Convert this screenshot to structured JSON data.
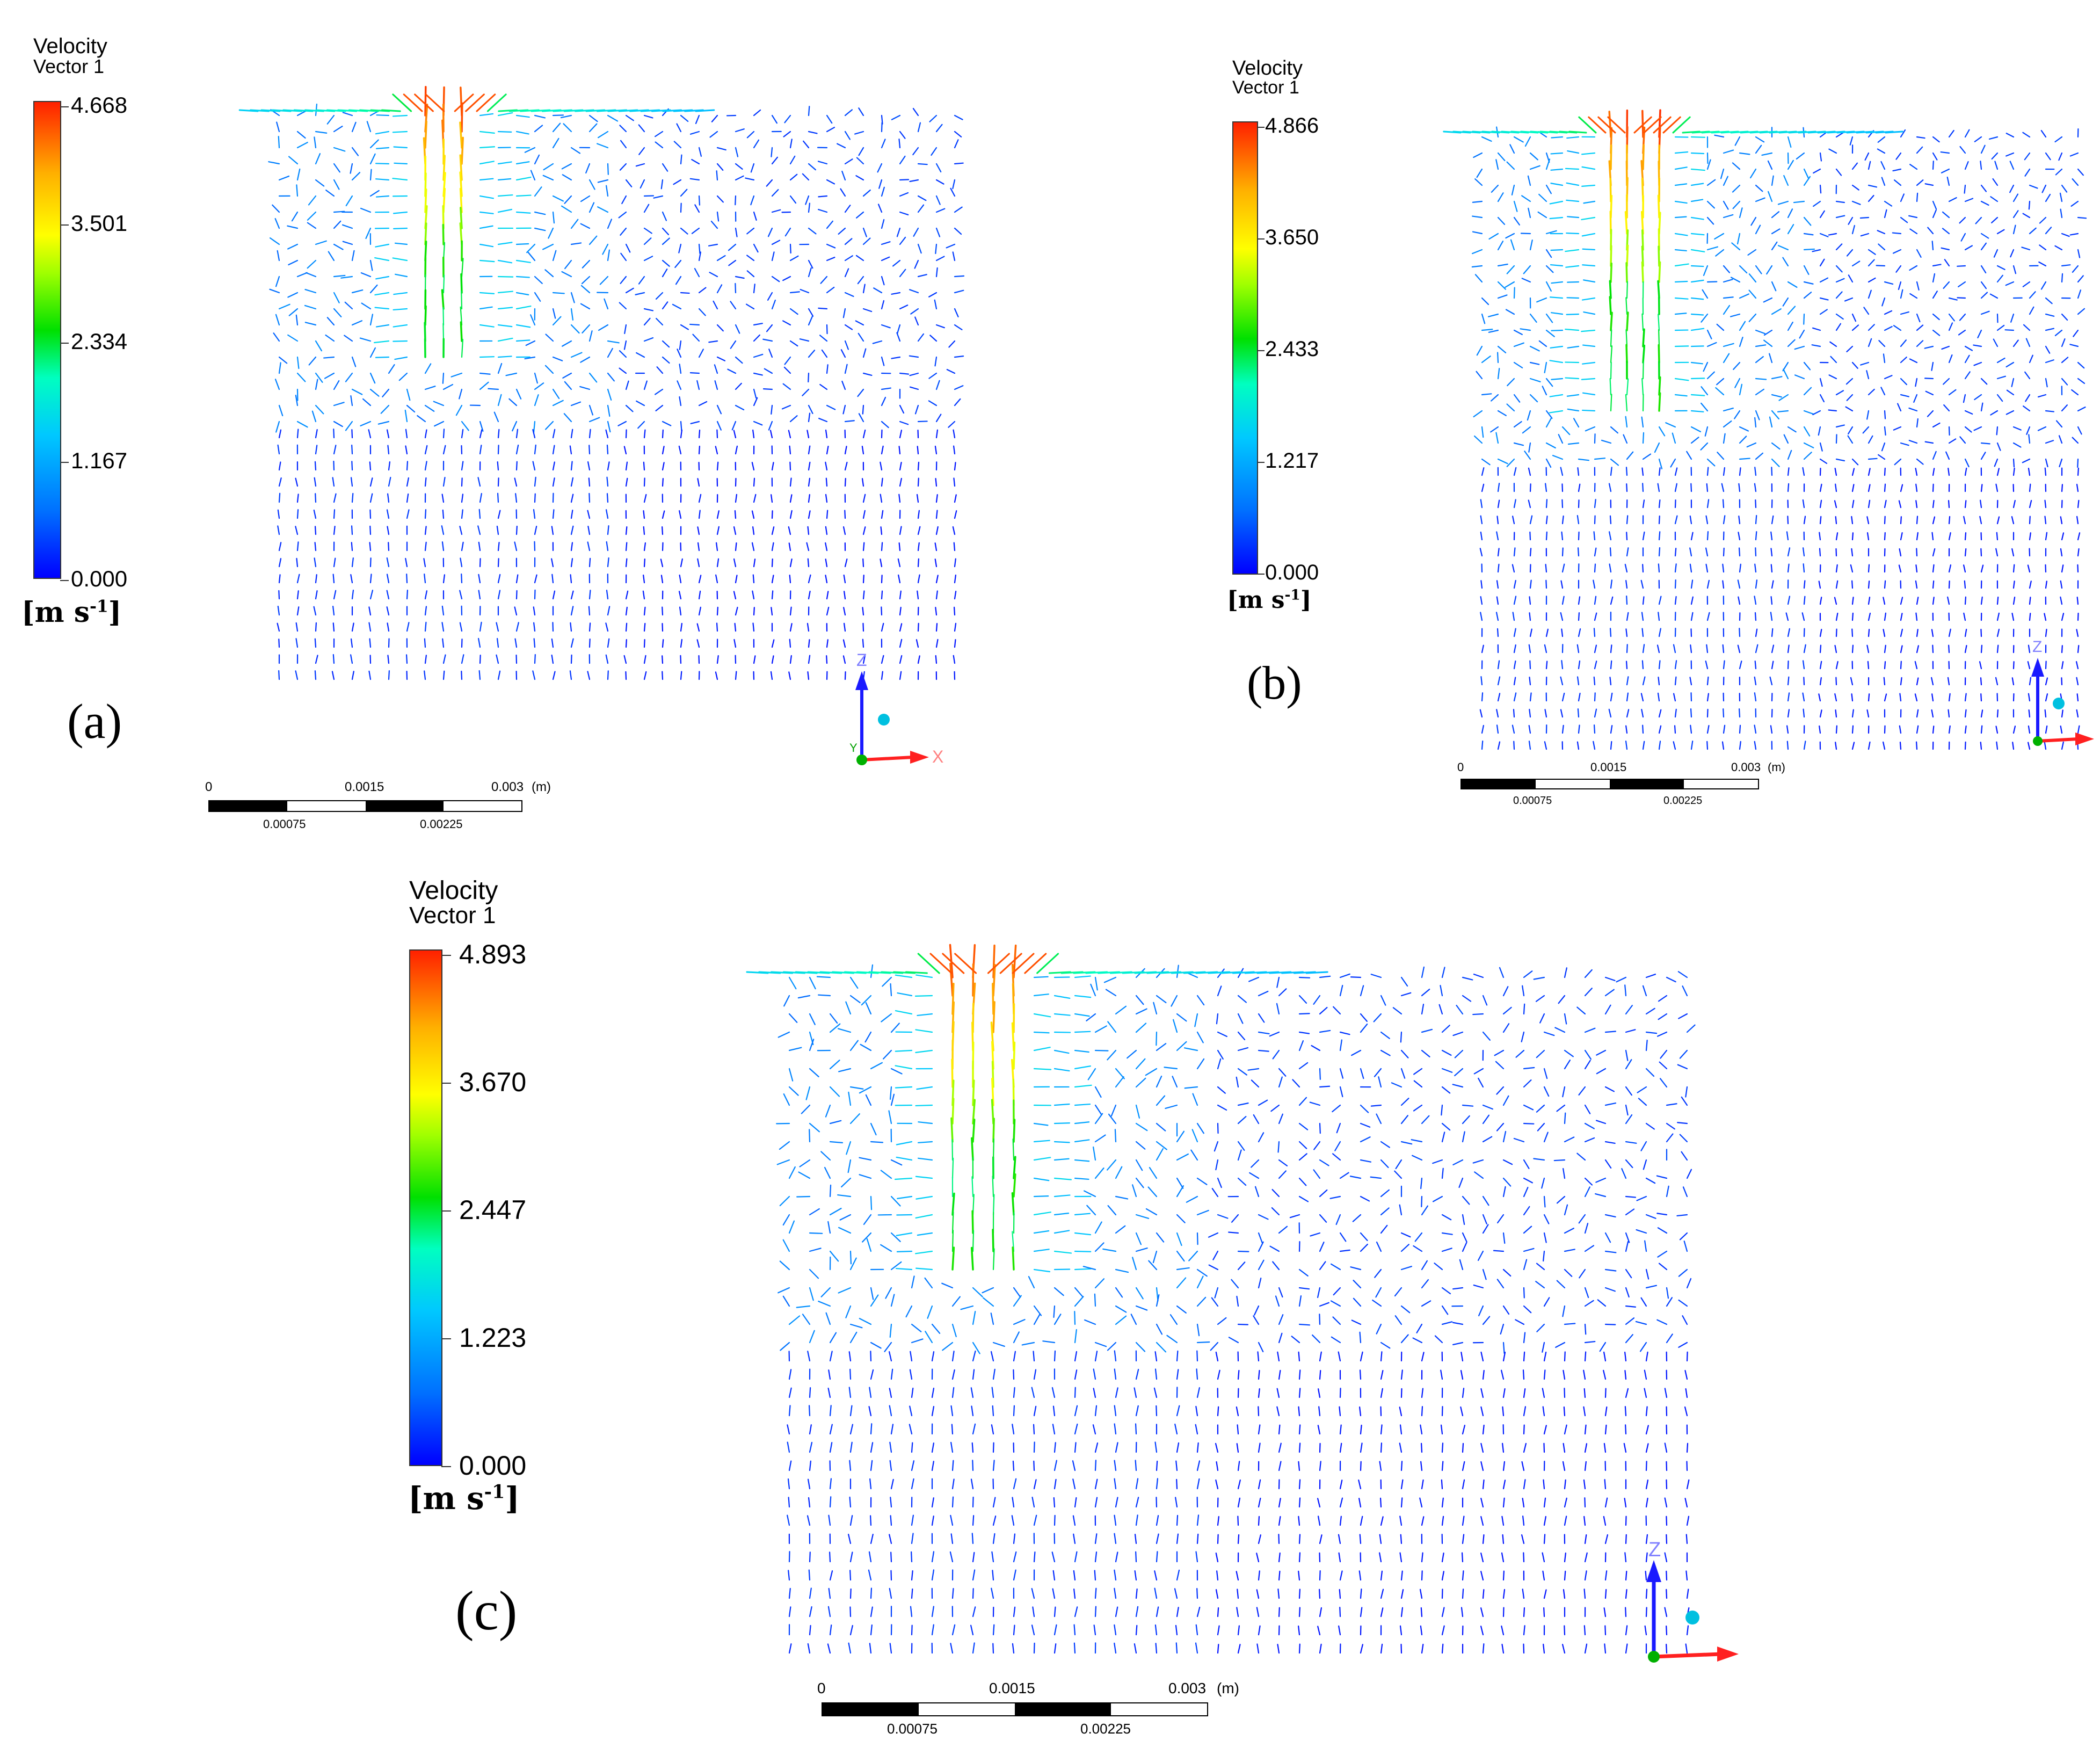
{
  "panels": [
    {
      "id": "a",
      "label": "(a)",
      "legend": {
        "title_line1": "Velocity",
        "title_line2": "Vector 1",
        "ticks": [
          "4.668",
          "3.501",
          "2.334",
          "1.167",
          "0.000"
        ],
        "unit": "[m s",
        "unit_exp": "-1",
        "unit_close": "]"
      },
      "scalebar": {
        "top_labels": [
          "0",
          "0.0015",
          "0.003",
          "(m)"
        ],
        "bottom_labels": [
          "0.00075",
          "0.00225"
        ]
      },
      "axes": {
        "z": "Z",
        "x": "X",
        "y": "Y"
      }
    },
    {
      "id": "b",
      "label": "(b)",
      "legend": {
        "title_line1": "Velocity",
        "title_line2": "Vector 1",
        "ticks": [
          "4.866",
          "3.650",
          "2.433",
          "1.217",
          "0.000"
        ],
        "unit": "[m s",
        "unit_exp": "-1",
        "unit_close": "]"
      },
      "scalebar": {
        "top_labels": [
          "0",
          "0.0015",
          "0.003",
          "(m)"
        ],
        "bottom_labels": [
          "0.00075",
          "0.00225"
        ]
      },
      "axes": {
        "z": "Z",
        "x": "",
        "y": ""
      }
    },
    {
      "id": "c",
      "label": "(c)",
      "legend": {
        "title_line1": "Velocity",
        "title_line2": "Vector 1",
        "ticks": [
          "4.893",
          "3.670",
          "2.447",
          "1.223",
          "0.000"
        ],
        "unit": "[m s",
        "unit_exp": "-1",
        "unit_close": "]"
      },
      "scalebar": {
        "top_labels": [
          "0",
          "0.0015",
          "0.003",
          "(m)"
        ],
        "bottom_labels": [
          "0.00075",
          "0.00225"
        ]
      },
      "axes": {
        "z": "Z",
        "x": "",
        "y": ""
      }
    }
  ],
  "colors": {
    "axis_z": "#1a1aff",
    "axis_x": "#ff2020",
    "axis_y": "#00b000",
    "axis_label": "#8080ff",
    "sphere": "#00c0e0"
  }
}
